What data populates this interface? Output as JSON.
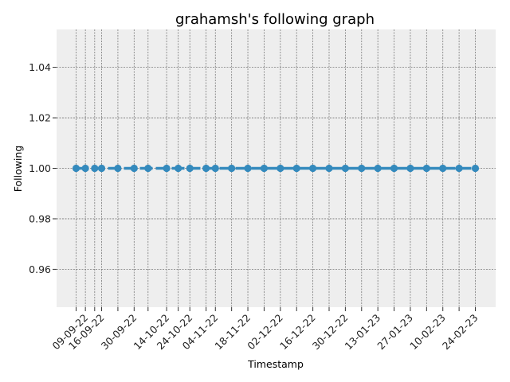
{
  "chart_data": {
    "type": "line",
    "title": "grahamsh's following graph",
    "xlabel": "Timestamp",
    "ylabel": "Following",
    "ylim": [
      0.945,
      1.055
    ],
    "y_ticks": [
      "0.96",
      "0.98",
      "1.00",
      "1.02",
      "1.04"
    ],
    "y_tick_values": [
      0.96,
      0.98,
      1.0,
      1.02,
      1.04
    ],
    "x_tick_labels": [
      "09-09-22",
      "16-09-22",
      "30-09-22",
      "14-10-22",
      "24-10-22",
      "04-11-22",
      "18-11-22",
      "02-12-22",
      "16-12-22",
      "30-12-22",
      "13-01-23",
      "27-01-23",
      "10-02-23",
      "24-02-23"
    ],
    "grid": true,
    "series": [
      {
        "color": "#348abd",
        "x": [
          "05-09-22",
          "09-09-22",
          "13-09-22",
          "16-09-22",
          "23-09-22",
          "30-09-22",
          "06-10-22",
          "14-10-22",
          "19-10-22",
          "24-10-22",
          "31-10-22",
          "04-11-22",
          "11-11-22",
          "18-11-22",
          "25-11-22",
          "02-12-22",
          "09-12-22",
          "16-12-22",
          "23-12-22",
          "30-12-22",
          "06-01-23",
          "13-01-23",
          "20-01-23",
          "27-01-23",
          "03-02-23",
          "10-02-23",
          "17-02-23",
          "24-02-23"
        ],
        "values": [
          1,
          1,
          1,
          1,
          1,
          1,
          1,
          1,
          1,
          1,
          1,
          1,
          1,
          1,
          1,
          1,
          1,
          1,
          1,
          1,
          1,
          1,
          1,
          1,
          1,
          1,
          1,
          1
        ]
      }
    ]
  }
}
